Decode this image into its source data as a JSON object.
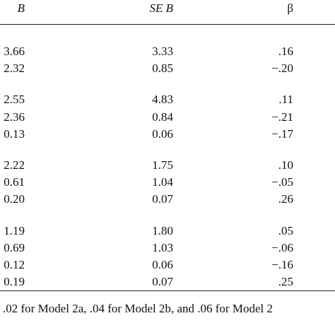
{
  "table": {
    "header": [
      "B",
      "SE B",
      "β"
    ],
    "groups": [
      [
        [
          "3.66",
          "3.33",
          ".16"
        ],
        [
          "2.32",
          "0.85",
          "−.20"
        ]
      ],
      [
        [
          "2.55",
          "4.83",
          ".11"
        ],
        [
          "2.36",
          "0.84",
          "−.21"
        ],
        [
          "0.13",
          "0.06",
          "−.17"
        ]
      ],
      [
        [
          "2.22",
          "1.75",
          ".10"
        ],
        [
          "0.61",
          "1.04",
          "−.05"
        ],
        [
          "0.20",
          "0.07",
          ".26"
        ]
      ],
      [
        [
          "1.19",
          "1.80",
          ".05"
        ],
        [
          "0.69",
          "1.03",
          "−.06"
        ],
        [
          "0.12",
          "0.06",
          "−.16"
        ],
        [
          "0.19",
          "0.07",
          ".25"
        ]
      ]
    ]
  },
  "footnote": ".02 for Model 2a, .04 for Model 2b, and .06 for Model 2"
}
